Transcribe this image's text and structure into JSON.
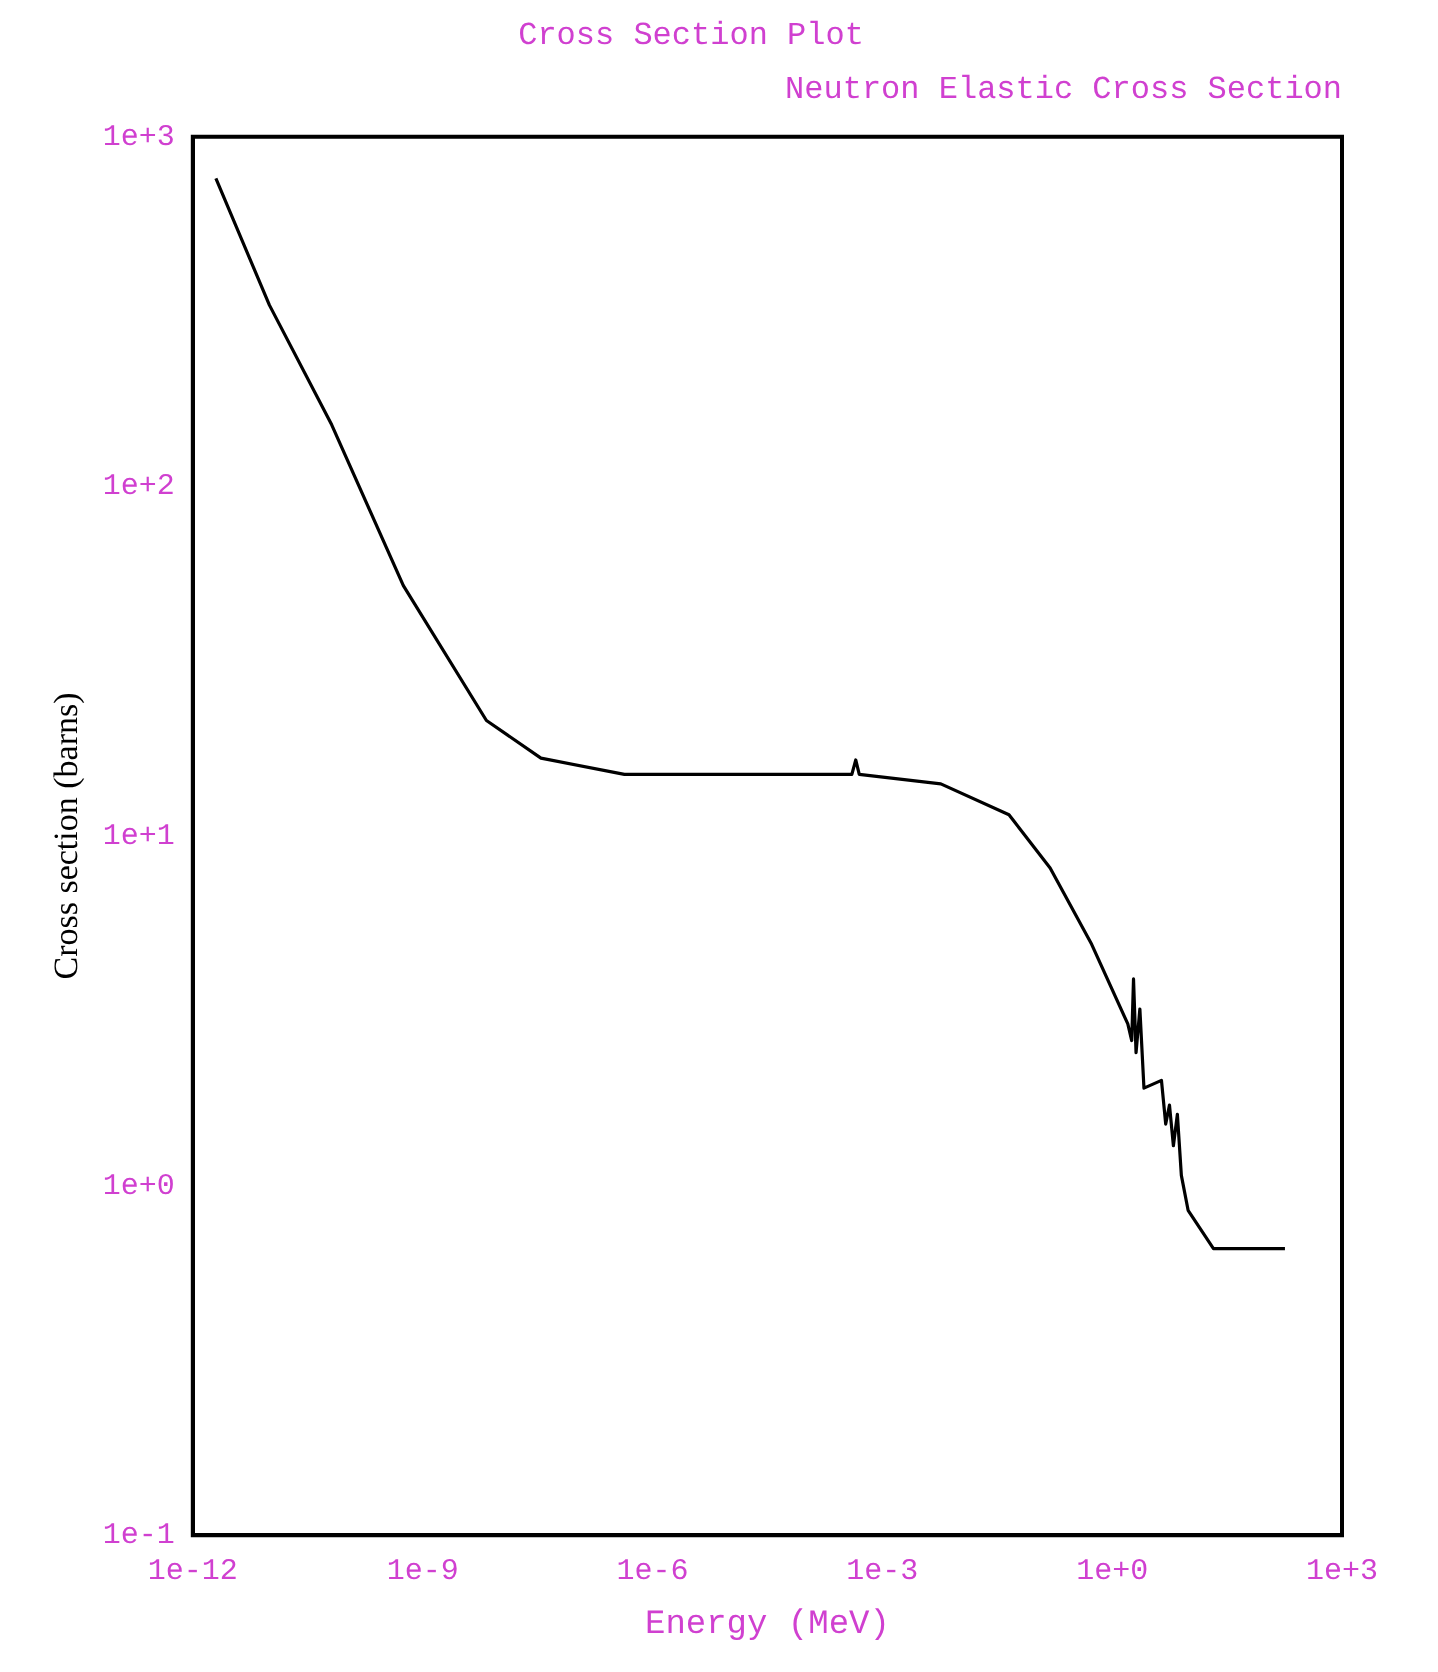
{
  "chart_data": {
    "type": "line",
    "title": "Cross Section Plot",
    "subtitle": "Neutron Elastic Cross Section",
    "xlabel": "Energy (MeV)",
    "ylabel": "Cross section (barns)",
    "log": "xy",
    "grid": false,
    "legend": false,
    "marker": "none",
    "line_style": "solid",
    "xlim": [
      1e-12,
      1000
    ],
    "ylim": [
      0.1,
      1000
    ],
    "xticks": [
      {
        "value": 1e-12,
        "label": "1e-12"
      },
      {
        "value": 1e-09,
        "label": "1e-9"
      },
      {
        "value": 1e-06,
        "label": "1e-6"
      },
      {
        "value": 0.001,
        "label": "1e-3"
      },
      {
        "value": 1,
        "label": "1e+0"
      },
      {
        "value": 1000,
        "label": "1e+3"
      }
    ],
    "yticks": [
      {
        "value": 0.1,
        "label": "1e-1"
      },
      {
        "value": 1,
        "label": "1e+0"
      },
      {
        "value": 10,
        "label": "1e+1"
      },
      {
        "value": 100,
        "label": "1e+2"
      },
      {
        "value": 1000,
        "label": "1e+3"
      }
    ],
    "series": [
      {
        "color": "#000000",
        "x": [
          2e-12,
          1e-11,
          6.5e-11,
          5.6e-10,
          6.8e-09,
          3.5e-08,
          4.3e-07,
          0.0004,
          0.00045,
          0.0005,
          0.0058,
          0.045,
          0.155,
          0.54,
          1.6,
          1.8,
          1.9,
          2.05,
          2.3,
          2.6,
          4.4,
          5,
          5.6,
          6.3,
          7.1,
          8,
          9.8,
          21,
          180
        ],
        "values": [
          760,
          330,
          150,
          52,
          21.4,
          16.7,
          15,
          15,
          16.5,
          15,
          14.1,
          11.5,
          8.1,
          4.9,
          2.9,
          2.6,
          3.9,
          2.4,
          3.2,
          1.9,
          2,
          1.5,
          1.7,
          1.3,
          1.6,
          1.07,
          0.85,
          0.66,
          0.66
        ]
      }
    ]
  }
}
